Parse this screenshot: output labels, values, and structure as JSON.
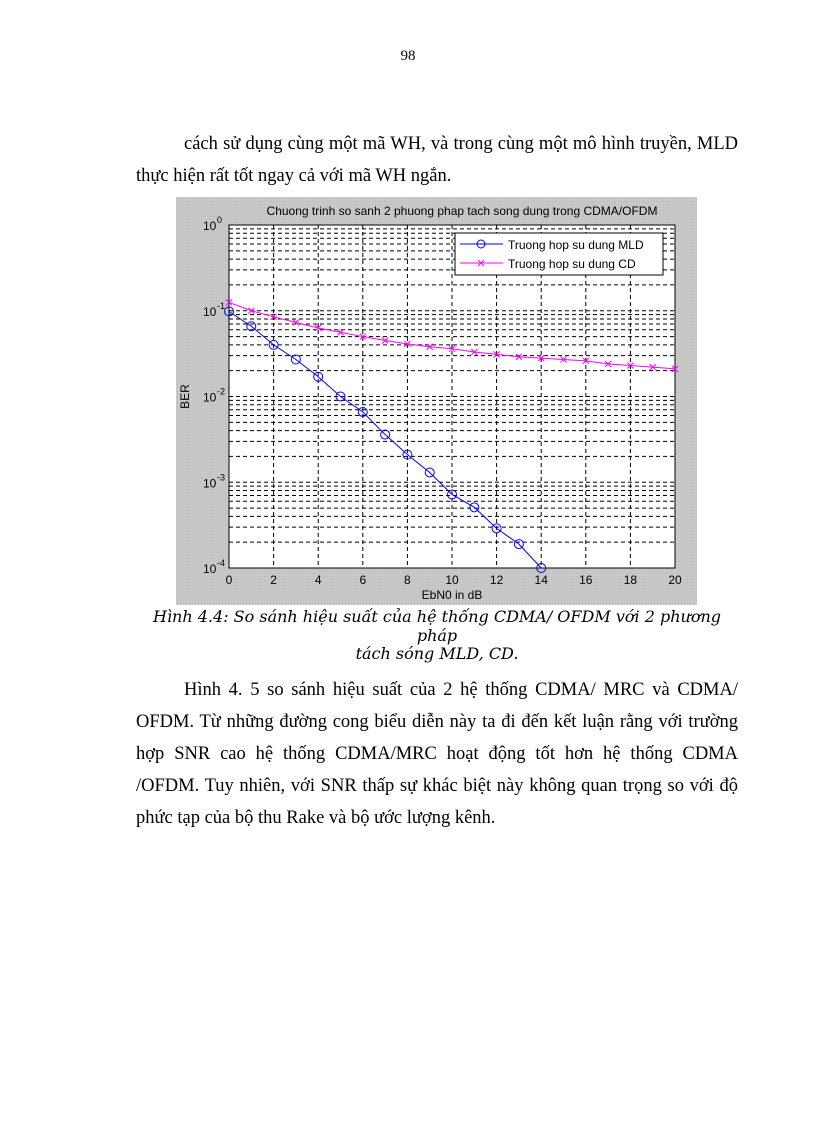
{
  "page": {
    "number": "98"
  },
  "paragraphs": {
    "p1": "cách sử dụng cùng một mã WH, và trong cùng một mô hình truyền, MLD thực hiện rất tốt ngay cả với mã WH ngắn.",
    "p2": "Hình 4. 5 so sánh hiệu suất của 2 hệ thống CDMA/ MRC và CDMA/ OFDM. Từ những đường cong biểu diễn này ta đi đến kết luận rằng với trường hợp SNR cao hệ thống CDMA/MRC hoạt động tốt hơn hệ thống CDMA /OFDM. Tuy nhiên, với SNR thấp sự khác biệt này không quan trọng so với độ phức tạp của bộ thu Rake và bộ ước lượng kênh."
  },
  "figure": {
    "caption_line1": "Hình 4.4: So sánh hiệu suất của hệ thống CDMA/ OFDM với 2 phương pháp",
    "caption_line2": "tách sóng MLD, CD."
  },
  "chart_data": {
    "type": "line",
    "title": "Chuong trinh so sanh 2 phuong phap tach song dung trong CDMA/OFDM",
    "xlabel": "EbN0 in dB",
    "ylabel": "BER",
    "xlim": [
      0,
      20
    ],
    "ylim": [
      0.0001,
      1
    ],
    "yscale": "log",
    "grid": true,
    "legend_position": "upper right",
    "x_ticks": [
      "0",
      "2",
      "4",
      "6",
      "8",
      "10",
      "12",
      "14",
      "16",
      "18",
      "20"
    ],
    "y_ticks": [
      "10^0",
      "10^-1",
      "10^-2",
      "10^-3",
      "10^-4"
    ],
    "series": [
      {
        "name": "Truong hop su dung MLD",
        "color": "#0000ff",
        "marker": "o",
        "x": [
          0,
          1,
          2,
          3,
          4,
          5,
          6,
          7,
          8,
          9,
          10,
          11,
          12,
          13,
          14
        ],
        "values": [
          0.098,
          0.066,
          0.04,
          0.027,
          0.017,
          0.01,
          0.0066,
          0.0036,
          0.0021,
          0.0013,
          0.00072,
          0.00051,
          0.00029,
          0.00019,
          0.0001
        ]
      },
      {
        "name": "Truong hop su dung CD",
        "color": "#ff00ff",
        "marker": "x",
        "x": [
          0,
          1,
          2,
          3,
          4,
          5,
          6,
          7,
          8,
          9,
          10,
          11,
          12,
          13,
          14,
          15,
          16,
          17,
          18,
          19,
          20
        ],
        "values": [
          0.125,
          0.1,
          0.085,
          0.073,
          0.063,
          0.056,
          0.05,
          0.045,
          0.041,
          0.038,
          0.036,
          0.033,
          0.031,
          0.029,
          0.028,
          0.027,
          0.026,
          0.024,
          0.023,
          0.022,
          0.021
        ]
      }
    ]
  }
}
